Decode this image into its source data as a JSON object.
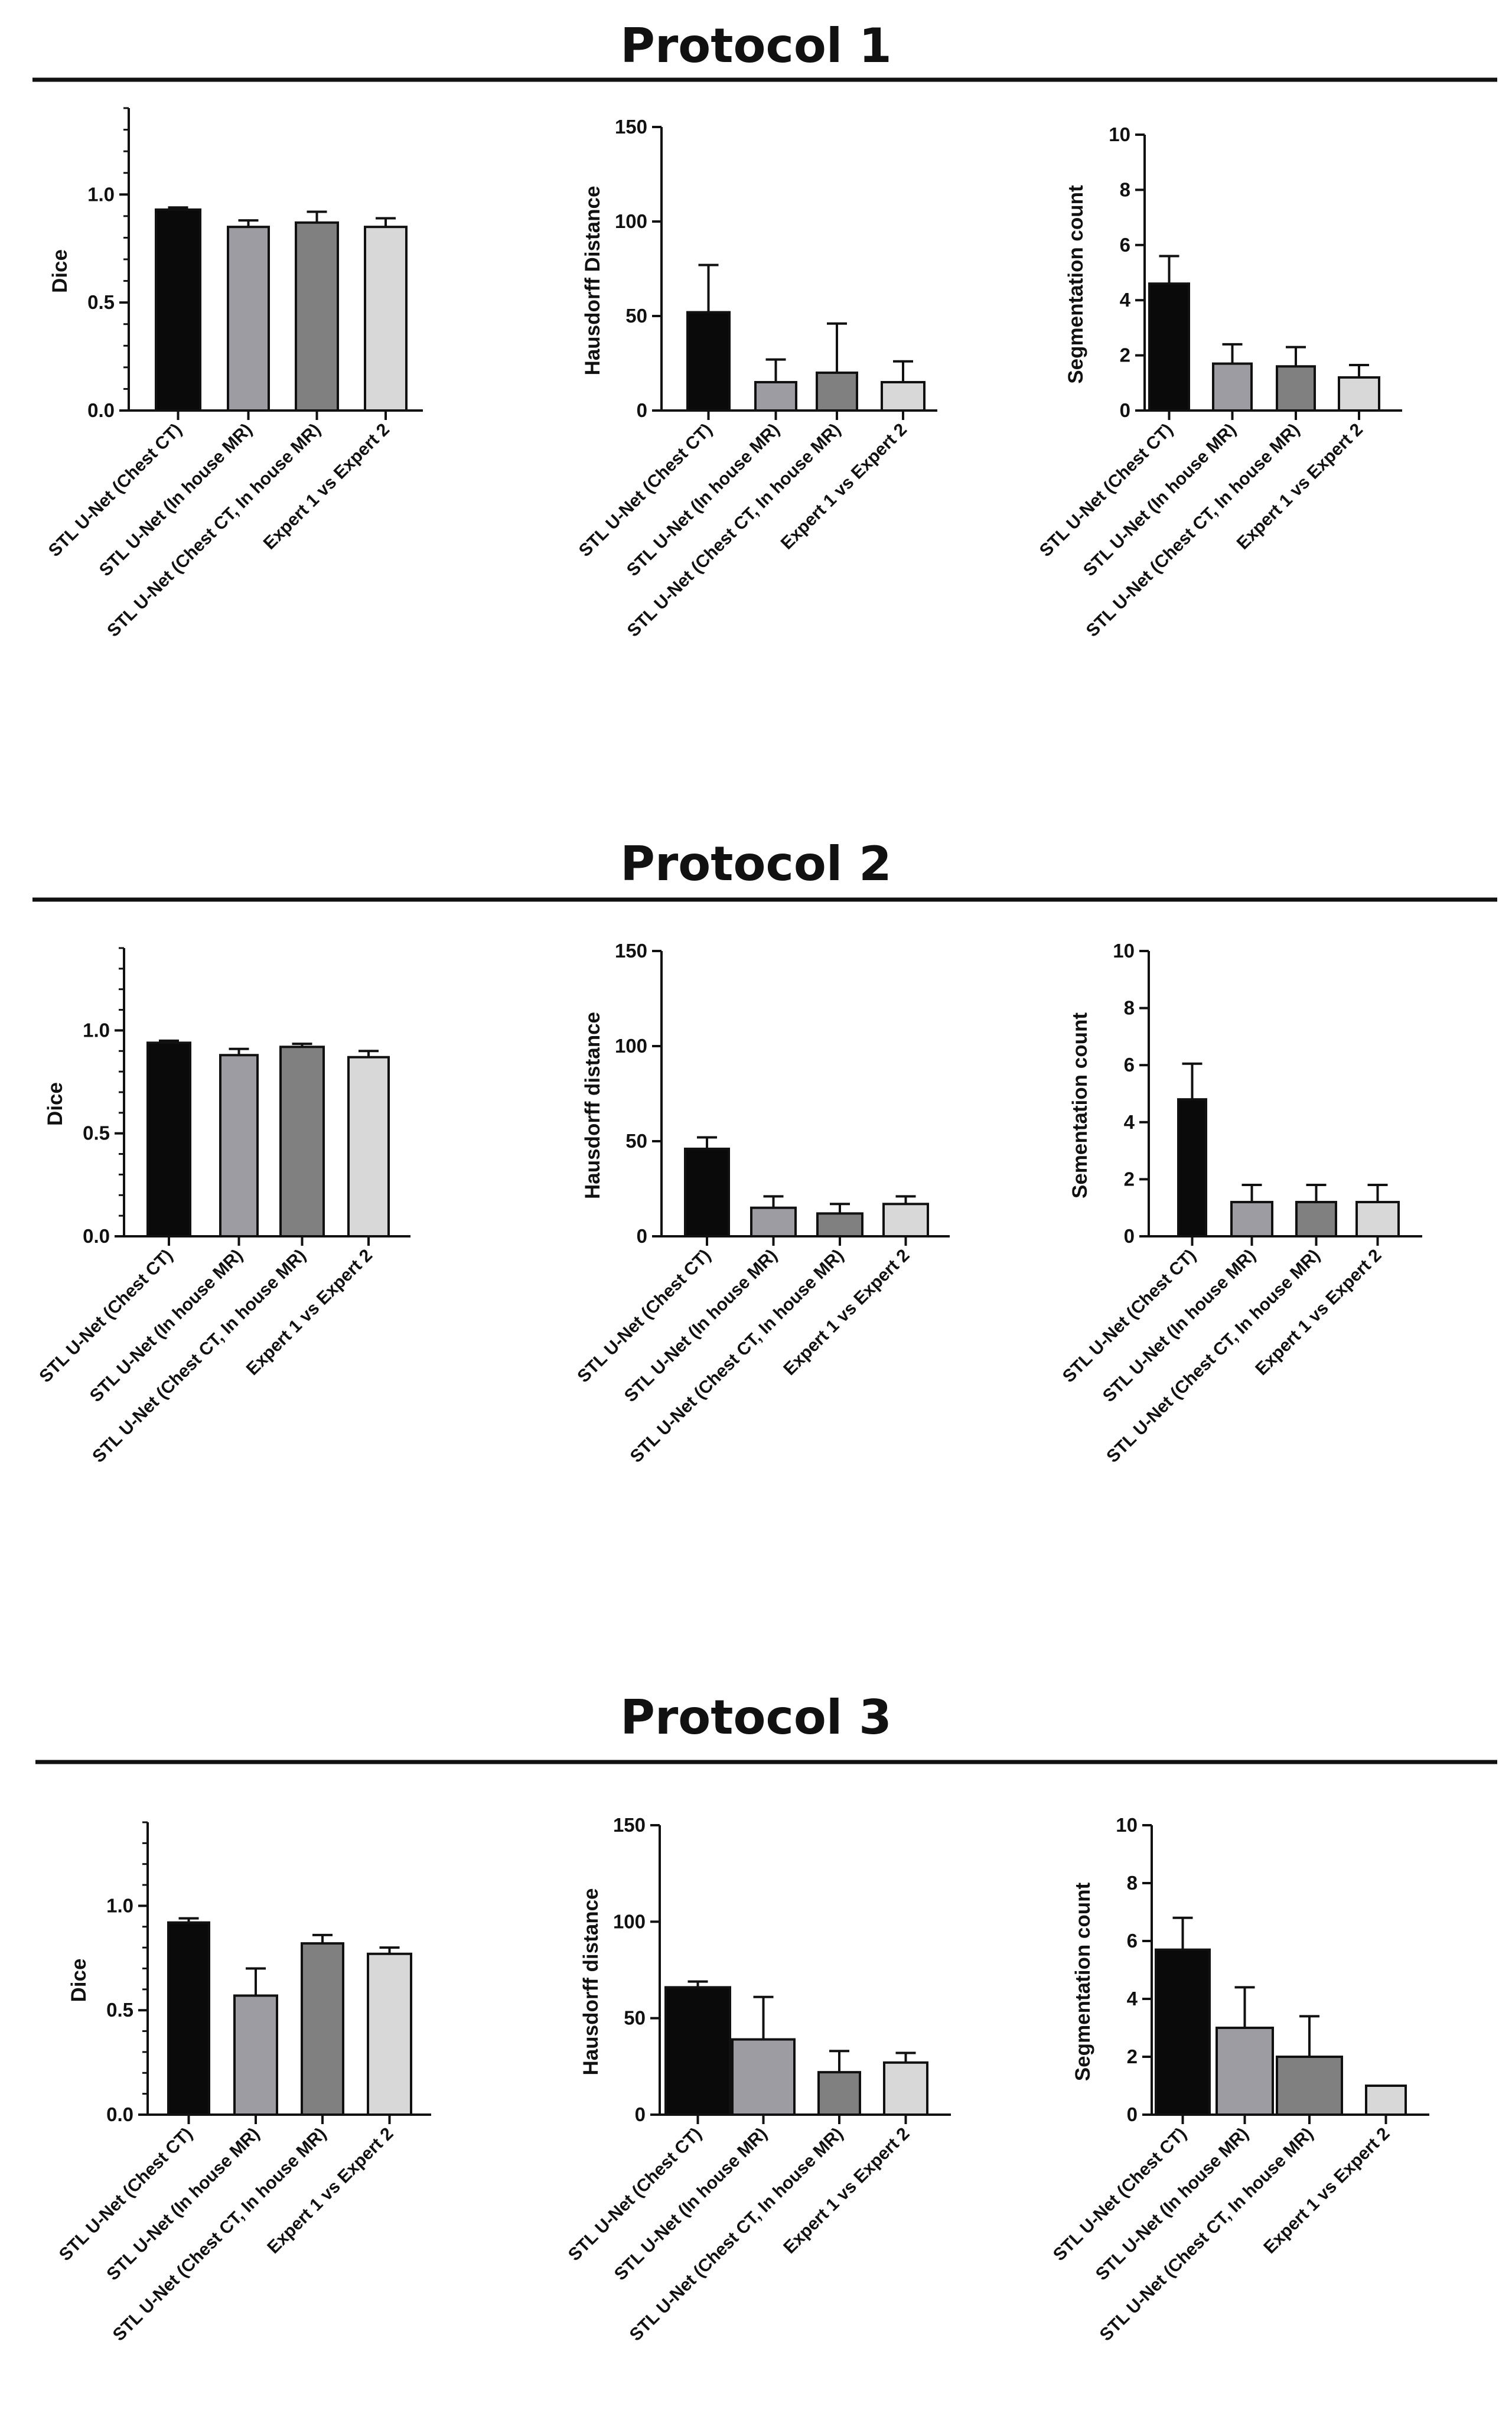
{
  "protocols": [
    {
      "title": "Protocol 1"
    },
    {
      "title": "Protocol 2"
    },
    {
      "title": "Protocol 3"
    }
  ],
  "colors": {
    "bars": [
      "#0a0a0a",
      "#9d9ca2",
      "#808080",
      "#d8d8d8"
    ],
    "axis": "#111111",
    "rule": "#111111"
  },
  "chart_data": [
    {
      "protocol": "Protocol 1",
      "type": "bar",
      "title": "",
      "ylabel": "Dice",
      "xlabel": "",
      "ylim": [
        0,
        1.4
      ],
      "yticks": [
        0.0,
        0.5,
        1.0
      ],
      "tick_labels": [
        "0.0",
        "0.5",
        "1.0"
      ],
      "categories": [
        "STL U-Net (Chest CT)",
        "STL U-Net (In house MR)",
        "STL U-Net (Chest CT, In house MR)",
        "Expert 1 vs Expert 2"
      ],
      "values": [
        0.93,
        0.85,
        0.87,
        0.85
      ],
      "errors": [
        0.01,
        0.03,
        0.05,
        0.04
      ]
    },
    {
      "protocol": "Protocol 1",
      "type": "bar",
      "title": "",
      "ylabel": "Hausdorff Distance",
      "xlabel": "",
      "ylim": [
        0,
        150
      ],
      "yticks": [
        0,
        50,
        100,
        150
      ],
      "tick_labels": [
        "0",
        "50",
        "100",
        "150"
      ],
      "categories": [
        "STL U-Net (Chest CT)",
        "STL U-Net (In house MR)",
        "STL U-Net (Chest CT, In house MR)",
        "Expert 1 vs Expert 2"
      ],
      "values": [
        52,
        15,
        20,
        15
      ],
      "errors": [
        25,
        12,
        26,
        11
      ]
    },
    {
      "protocol": "Protocol 1",
      "type": "bar",
      "title": "",
      "ylabel": "Segmentation count",
      "xlabel": "",
      "ylim": [
        0,
        10
      ],
      "yticks": [
        0,
        2,
        4,
        6,
        8,
        10
      ],
      "tick_labels": [
        "0",
        "2",
        "4",
        "6",
        "8",
        "10"
      ],
      "categories": [
        "STL U-Net (Chest CT)",
        "STL U-Net (In house MR)",
        "STL U-Net (Chest CT, In house MR)",
        "Expert 1 vs Expert 2"
      ],
      "values": [
        4.6,
        1.7,
        1.6,
        1.2
      ],
      "errors": [
        1.0,
        0.7,
        0.7,
        0.45
      ]
    },
    {
      "protocol": "Protocol 2",
      "type": "bar",
      "title": "",
      "ylabel": "Dice",
      "xlabel": "",
      "ylim": [
        0,
        1.4
      ],
      "yticks": [
        0.0,
        0.5,
        1.0
      ],
      "tick_labels": [
        "0.0",
        "0.5",
        "1.0"
      ],
      "categories": [
        "STL U-Net (Chest CT)",
        "STL U-Net (In house MR)",
        "STL U-Net (Chest CT, In house MR)",
        "Expert 1 vs Expert 2"
      ],
      "values": [
        0.94,
        0.88,
        0.92,
        0.87
      ],
      "errors": [
        0.01,
        0.03,
        0.015,
        0.03
      ]
    },
    {
      "protocol": "Protocol 2",
      "type": "bar",
      "title": "",
      "ylabel": "Hausdorff distance",
      "xlabel": "",
      "ylim": [
        0,
        150
      ],
      "yticks": [
        0,
        50,
        100,
        150
      ],
      "tick_labels": [
        "0",
        "50",
        "100",
        "150"
      ],
      "categories": [
        "STL U-Net (Chest CT)",
        "STL U-Net (In house MR)",
        "STL U-Net (Chest CT, In house MR)",
        "Expert 1 vs Expert 2"
      ],
      "values": [
        46,
        15,
        12,
        17
      ],
      "errors": [
        6,
        6,
        5,
        4
      ]
    },
    {
      "protocol": "Protocol 2",
      "type": "bar",
      "title": "",
      "ylabel": "Sementation count",
      "xlabel": "",
      "ylim": [
        0,
        10
      ],
      "yticks": [
        0,
        2,
        4,
        6,
        8,
        10
      ],
      "tick_labels": [
        "0",
        "2",
        "4",
        "6",
        "8",
        "10"
      ],
      "categories": [
        "STL U-Net (Chest CT)",
        "STL U-Net (In house MR)",
        "STL U-Net (Chest CT, In house MR)",
        "Expert 1 vs Expert 2"
      ],
      "values": [
        4.8,
        1.2,
        1.2,
        1.2
      ],
      "errors": [
        1.25,
        0.6,
        0.6,
        0.6
      ]
    },
    {
      "protocol": "Protocol 3",
      "type": "bar",
      "title": "",
      "ylabel": "Dice",
      "xlabel": "",
      "ylim": [
        0,
        1.4
      ],
      "yticks": [
        0.0,
        0.5,
        1.0
      ],
      "tick_labels": [
        "0.0",
        "0.5",
        "1.0"
      ],
      "categories": [
        "STL U-Net (Chest CT)",
        "STL U-Net (In house MR)",
        "STL U-Net (Chest CT, In house MR)",
        "Expert 1 vs Expert 2"
      ],
      "values": [
        0.92,
        0.57,
        0.82,
        0.77
      ],
      "errors": [
        0.02,
        0.13,
        0.04,
        0.03
      ]
    },
    {
      "protocol": "Protocol 3",
      "type": "bar",
      "title": "",
      "ylabel": "Hausdorff distance",
      "xlabel": "",
      "ylim": [
        0,
        150
      ],
      "yticks": [
        0,
        50,
        100,
        150
      ],
      "tick_labels": [
        "0",
        "50",
        "100",
        "150"
      ],
      "categories": [
        "STL U-Net (Chest CT)",
        "STL U-Net (In house MR)",
        "STL U-Net (Chest CT, In house MR)",
        "Expert 1 vs Expert 2"
      ],
      "values": [
        66,
        39,
        22,
        27
      ],
      "errors": [
        3,
        22,
        11,
        5
      ]
    },
    {
      "protocol": "Protocol 3",
      "type": "bar",
      "title": "",
      "ylabel": "Segmentation count",
      "xlabel": "",
      "ylim": [
        0,
        10
      ],
      "yticks": [
        0,
        2,
        4,
        6,
        8,
        10
      ],
      "tick_labels": [
        "0",
        "2",
        "4",
        "6",
        "8",
        "10"
      ],
      "categories": [
        "STL U-Net (Chest CT)",
        "STL U-Net (In house MR)",
        "STL U-Net (Chest CT, In house MR)",
        "Expert 1 vs Expert 2"
      ],
      "values": [
        5.7,
        3.0,
        2.0,
        1.0
      ],
      "errors": [
        1.1,
        1.4,
        1.4,
        0
      ]
    }
  ]
}
